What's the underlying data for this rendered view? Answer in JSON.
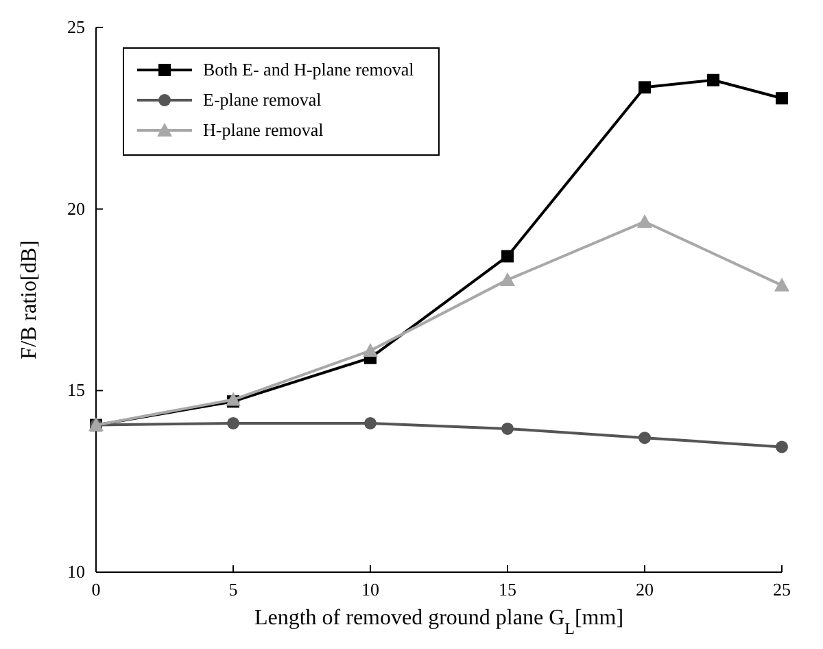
{
  "chart_data": {
    "type": "line",
    "xlabel": "Length of removed ground plane G$_{L}$[mm]",
    "ylabel": "F/B ratio[dB]",
    "xlim": [
      0,
      25
    ],
    "ylim": [
      10,
      25
    ],
    "xticks": [
      0,
      5,
      10,
      15,
      20,
      25
    ],
    "yticks": [
      10,
      15,
      20,
      25
    ],
    "grid": false,
    "legend": "top left",
    "line_style": "solid",
    "series": [
      {
        "name": "Both E- and H-plane removal",
        "color": "#000000",
        "marker": "square",
        "x": [
          0,
          5,
          10,
          15,
          20,
          22.5,
          25
        ],
        "values": [
          14.05,
          14.7,
          15.9,
          18.7,
          23.35,
          23.55,
          23.05
        ]
      },
      {
        "name": "E-plane removal",
        "color": "#555555",
        "marker": "circle",
        "x": [
          0,
          5,
          10,
          15,
          20,
          25
        ],
        "values": [
          14.05,
          14.1,
          14.1,
          13.95,
          13.7,
          13.45
        ]
      },
      {
        "name": "H-plane removal",
        "color": "#a8a8a8",
        "marker": "triangle",
        "x": [
          0,
          5,
          10,
          15,
          20,
          25
        ],
        "values": [
          14.05,
          14.75,
          16.1,
          18.05,
          19.65,
          17.9
        ]
      }
    ]
  }
}
